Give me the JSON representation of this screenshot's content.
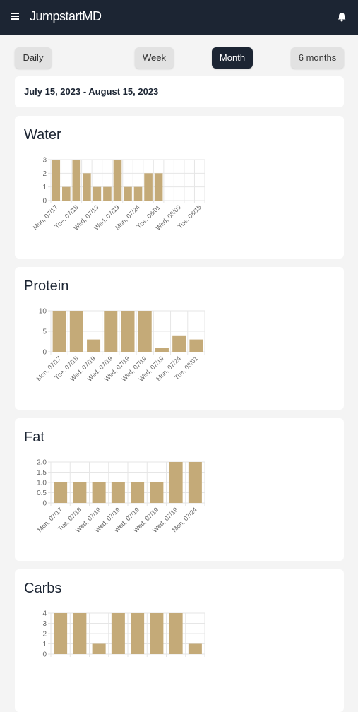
{
  "header": {
    "logo": "JumpstartMD"
  },
  "tabs": [
    "Daily",
    "Week",
    "Month",
    "6 months"
  ],
  "date_range": "July 15, 2023 - August 15, 2023",
  "chart_data": [
    {
      "type": "bar",
      "title": "Water",
      "color": "#c4aa78",
      "categories": [
        "Mon, 07/17",
        null,
        "Tue, 07/18",
        null,
        "Wed, 07/19",
        null,
        "Wed, 07/19",
        null,
        "Mon, 07/24",
        null,
        "Tue, 08/01",
        null,
        "Wed, 08/09",
        null,
        "Tue, 08/15"
      ],
      "values": [
        3,
        1,
        3,
        2,
        1,
        1,
        3,
        1,
        1,
        2,
        2,
        0,
        0,
        0,
        0
      ],
      "ylim": [
        0,
        3
      ],
      "yticks": [
        0,
        1,
        2,
        3
      ],
      "grid": true
    },
    {
      "type": "bar",
      "title": "Protein",
      "color": "#c4aa78",
      "categories": [
        "Mon, 07/17",
        "Tue, 07/18",
        "Wed, 07/19",
        "Wed, 07/19",
        "Wed, 07/19",
        "Wed, 07/19",
        "Wed, 07/19",
        "Mon, 07/24",
        "Tue, 08/01"
      ],
      "values": [
        10,
        10,
        3,
        10,
        10,
        10,
        1,
        4,
        3
      ],
      "ylim": [
        0,
        10
      ],
      "yticks": [
        0,
        5,
        10
      ],
      "grid": true
    },
    {
      "type": "bar",
      "title": "Fat",
      "color": "#c4aa78",
      "categories": [
        "Mon, 07/17",
        "Tue, 07/18",
        "Wed, 07/19",
        "Wed, 07/19",
        "Wed, 07/19",
        "Wed, 07/19",
        "Wed, 07/19",
        "Mon, 07/24"
      ],
      "values": [
        1,
        1,
        1,
        1,
        1,
        1,
        2,
        2
      ],
      "ylim": [
        0,
        2
      ],
      "yticks": [
        0,
        0.5,
        {
          "value": 1,
          "label": "1.0"
        },
        1.5,
        {
          "value": 2,
          "label": "2.0"
        }
      ],
      "grid": true
    },
    {
      "type": "bar",
      "title": "Carbs",
      "color": "#c4aa78",
      "categories": [
        null,
        null,
        null,
        null,
        null,
        null,
        null,
        null
      ],
      "values": [
        4,
        4,
        1,
        4,
        4,
        4,
        4,
        1
      ],
      "ylim": [
        0,
        4
      ],
      "yticks": [
        0,
        1,
        2,
        3,
        4
      ],
      "grid": true
    }
  ]
}
